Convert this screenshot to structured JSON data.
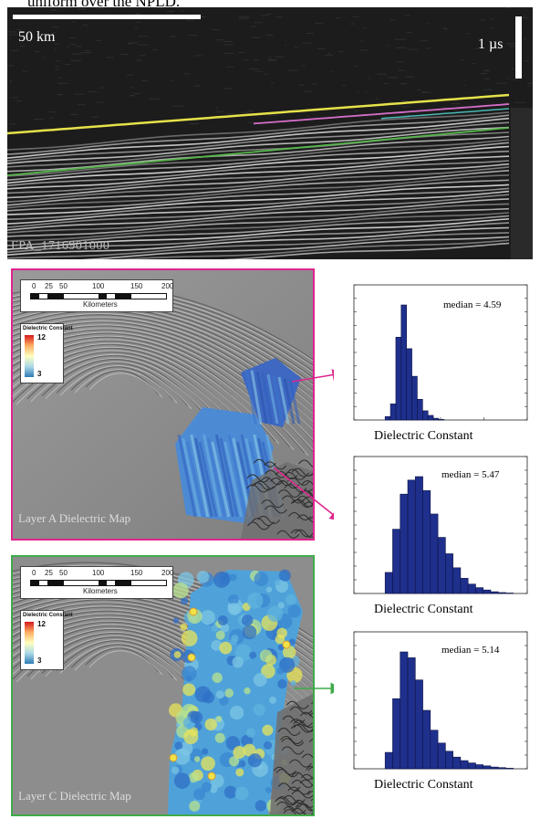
{
  "caption_top": "uniform over the NPLD.",
  "radar": {
    "scale_distance": "50 km",
    "scale_time": "1 µs",
    "id_label": "FPA_1716901000"
  },
  "panels": [
    {
      "label": "Layer A Dielectric Map",
      "border_color": "#e0248e",
      "scalebar": {
        "ticks": [
          "0",
          "25",
          "50",
          "100",
          "150",
          "200"
        ],
        "unit": "Kilometers"
      },
      "legend": {
        "title": "Dielectric Constant",
        "max": "12",
        "min": "3"
      }
    },
    {
      "label": "Layer C Dielectric Map",
      "border_color": "#3fab4a",
      "scalebar": {
        "ticks": [
          "0",
          "25",
          "50",
          "100",
          "150",
          "200"
        ],
        "unit": "Kilometers"
      },
      "legend": {
        "title": "Dielectric Constant",
        "max": "12",
        "min": "3"
      }
    }
  ],
  "colors": {
    "bar_fill": "#1f2f8c",
    "pink_arrow": "#e0248e",
    "green_arrow": "#3fab4a"
  },
  "chart_data": [
    {
      "type": "bar",
      "xlabel": "Dielectric Constant",
      "annotation": "median = 4.59",
      "values": [
        0.03,
        0.14,
        0.72,
        1.0,
        0.62,
        0.38,
        0.18,
        0.08,
        0.04,
        0.015,
        0.005
      ],
      "y_tick_count": 10
    },
    {
      "type": "bar",
      "xlabel": "Dielectric Constant",
      "annotation": "median = 5.47",
      "values": [
        0.18,
        0.55,
        0.85,
        0.97,
        1.0,
        0.88,
        0.68,
        0.48,
        0.34,
        0.22,
        0.13,
        0.08,
        0.05,
        0.03,
        0.015,
        0.008,
        0.004
      ],
      "y_tick_count": 10
    },
    {
      "type": "bar",
      "xlabel": "Dielectric Constant",
      "annotation": "median = 5.14",
      "values": [
        0.14,
        0.6,
        1.0,
        0.95,
        0.76,
        0.5,
        0.33,
        0.22,
        0.15,
        0.1,
        0.07,
        0.05,
        0.035,
        0.025,
        0.015,
        0.01,
        0.005
      ],
      "y_tick_count": 10
    }
  ]
}
